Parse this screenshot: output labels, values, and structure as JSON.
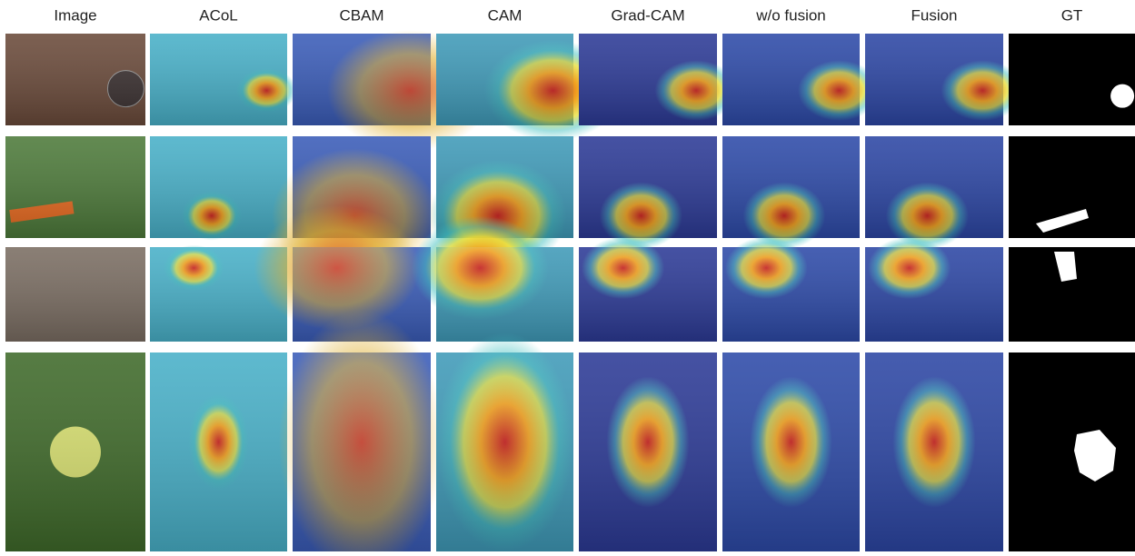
{
  "columns": [
    "Image",
    "ACoL",
    "CBAM",
    "CAM",
    "Grad-CAM",
    "w/o fusion",
    "Fusion",
    "GT"
  ]
}
